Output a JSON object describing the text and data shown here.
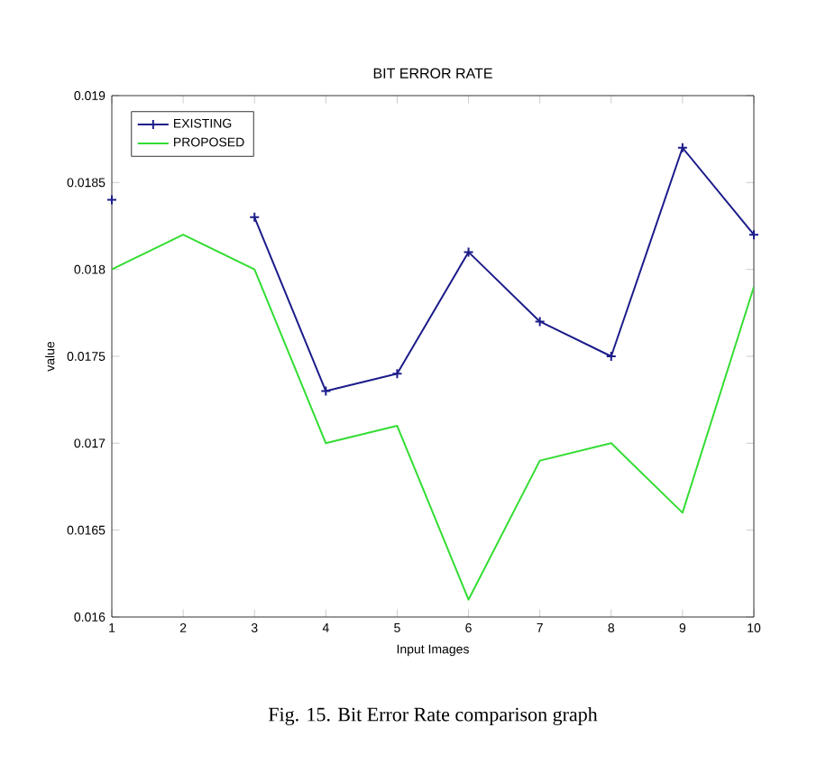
{
  "chart_data": {
    "type": "line",
    "title": "BIT ERROR RATE",
    "xlabel": "Input Images",
    "ylabel": "value",
    "x": [
      1,
      2,
      3,
      4,
      5,
      6,
      7,
      8,
      9,
      10
    ],
    "series": [
      {
        "name": "EXISTING",
        "color": "#1c1c8a",
        "marker": "cross",
        "values": [
          0.0184,
          null,
          0.0183,
          0.0173,
          0.0174,
          0.0181,
          0.0177,
          0.0175,
          0.0187,
          0.0182
        ]
      },
      {
        "name": "PROPOSED",
        "color": "#33dd33",
        "marker": "none",
        "values": [
          0.018,
          0.0182,
          0.018,
          0.017,
          0.0171,
          0.0161,
          0.0169,
          0.017,
          0.0166,
          0.0179
        ]
      }
    ],
    "xlim": [
      1,
      10
    ],
    "xticks": [
      1,
      2,
      3,
      4,
      5,
      6,
      7,
      8,
      9,
      10
    ],
    "ylim": [
      0.016,
      0.019
    ],
    "yticks": [
      0.016,
      0.0165,
      0.017,
      0.0175,
      0.018,
      0.0185,
      0.019
    ],
    "legend": "top left",
    "annotations": [
      "Fig. 15. Bit Error Rate comparison graph"
    ]
  }
}
